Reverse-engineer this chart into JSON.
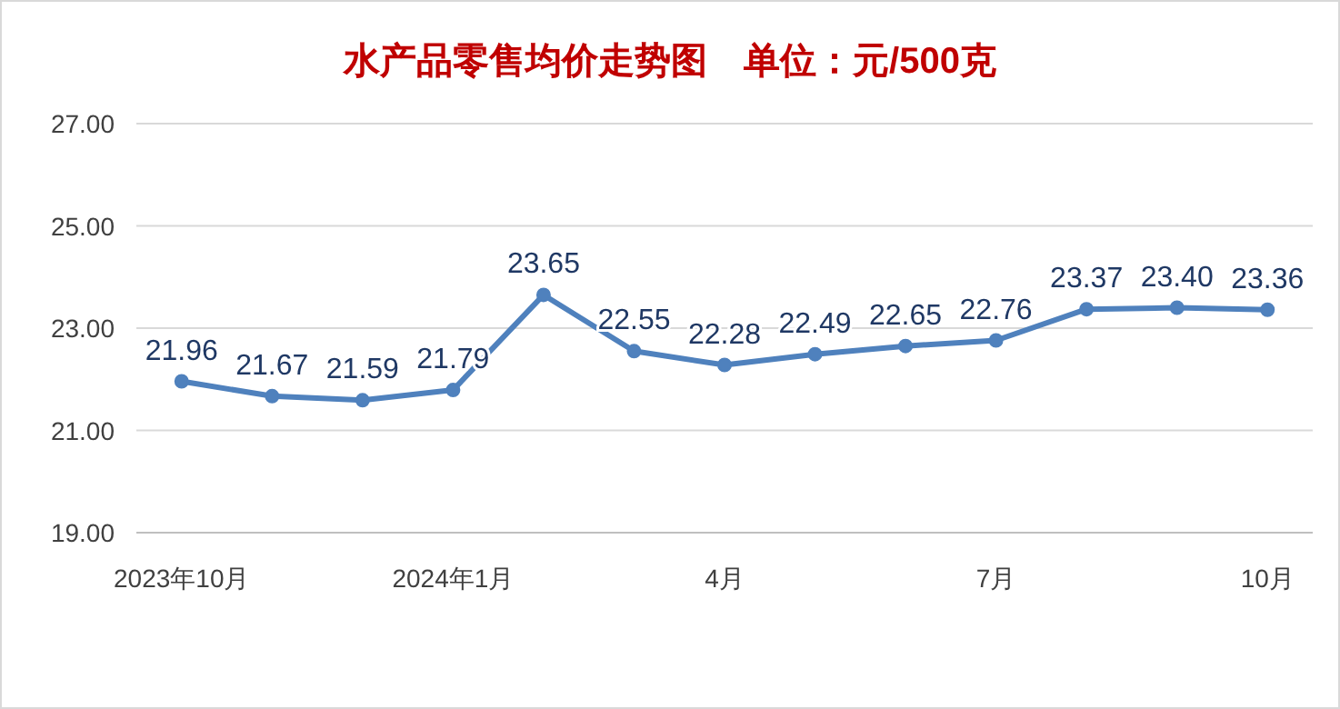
{
  "chart_data": {
    "type": "line",
    "title": "水产品零售均价走势图　单位：元/500克",
    "categories": [
      "2023年10月",
      null,
      null,
      "2024年1月",
      null,
      null,
      "4月",
      null,
      null,
      "7月",
      null,
      null,
      "10月"
    ],
    "series": [
      {
        "color": "#4f81bd",
        "values": [
          21.96,
          21.67,
          21.59,
          21.79,
          23.65,
          22.55,
          22.28,
          22.49,
          22.65,
          22.76,
          23.37,
          23.4,
          23.36
        ],
        "value_labels": [
          "21.96",
          "21.67",
          "21.59",
          "21.79",
          "23.65",
          "22.55",
          "22.28",
          "22.49",
          "22.65",
          "22.76",
          "23.37",
          "23.40",
          "23.36"
        ]
      }
    ],
    "ylim": [
      19,
      27
    ],
    "yticks": [
      {
        "value": 19,
        "label": "19.00"
      },
      {
        "value": 21,
        "label": "21.00"
      },
      {
        "value": 23,
        "label": "23.00"
      },
      {
        "value": 25,
        "label": "25.00"
      },
      {
        "value": 27,
        "label": "27.00"
      }
    ],
    "grid": "y",
    "marker": "circle",
    "line_style": "solid"
  }
}
